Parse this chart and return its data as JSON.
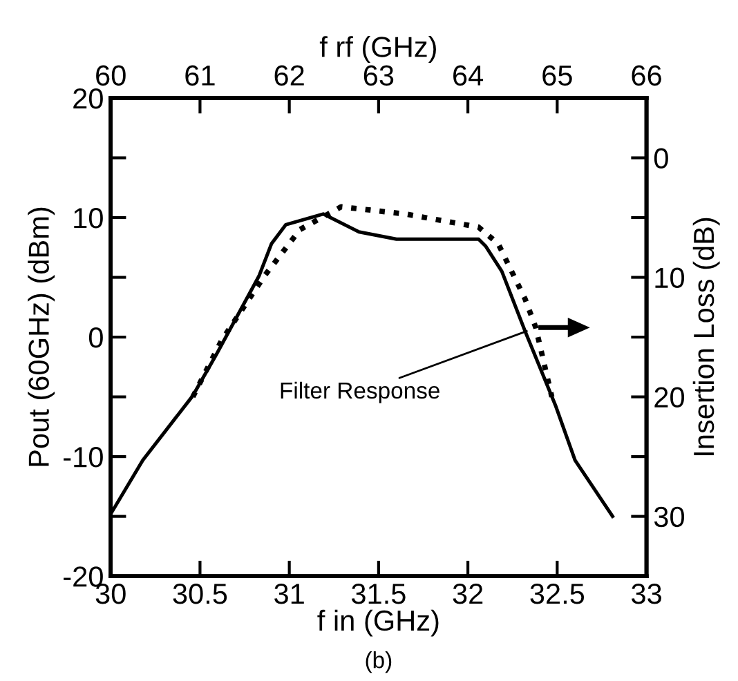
{
  "chart_data": {
    "type": "line",
    "xlabel": "f in (GHz)",
    "ylabel": "Pout (60GHz) (dBm)",
    "y2label": "Insertion Loss (dB)",
    "x2label": "f rf (GHz)",
    "xlim": [
      30,
      33
    ],
    "xticks": [
      30,
      30.5,
      31,
      31.5,
      32,
      32.5,
      33
    ],
    "x2lim": [
      60,
      66
    ],
    "x2ticks": [
      60,
      61,
      62,
      63,
      64,
      65,
      66
    ],
    "ylim": [
      -20,
      20
    ],
    "yticks": [
      -20,
      {
        "value": -15,
        "label": null
      },
      -10,
      {
        "value": -5,
        "label": null
      },
      0,
      {
        "value": 5,
        "label": null
      },
      10,
      {
        "value": 15,
        "label": null
      },
      20
    ],
    "y2lim": [
      35,
      -5
    ],
    "y2ticks": [
      0,
      {
        "value": 5,
        "label": null
      },
      10,
      {
        "value": 15,
        "label": null
      },
      20,
      {
        "value": 25,
        "label": null
      },
      30
    ],
    "series": [
      {
        "color": "#000000",
        "line_style": "solid",
        "x": [
          30,
          30.18,
          30.46,
          30.59,
          30.83,
          30.9,
          30.98,
          31.19,
          31.39,
          31.6,
          32.06,
          32.1,
          32.19,
          32.32,
          32.49,
          32.6,
          32.81
        ],
        "values": [
          -14.8,
          -10.3,
          -4.9,
          -1.5,
          5.1,
          7.8,
          9.4,
          10.3,
          8.8,
          8.2,
          8.2,
          7.6,
          5.5,
          0.5,
          -5.7,
          -10.3,
          -15.0
        ]
      },
      {
        "color": "#000000",
        "line_style": "dotted",
        "axis": "y2",
        "x": [
          30.46,
          30.62,
          30.86,
          31.06,
          31.29,
          31.65,
          32.06,
          32.17,
          32.32,
          32.38,
          32.47
        ],
        "values": [
          20.0,
          15.3,
          9.9,
          6.0,
          4.1,
          4.7,
          5.8,
          7.2,
          11.8,
          14.2,
          20.0
        ]
      }
    ],
    "annotations": [
      {
        "text": "Filter Response",
        "x": 32.33,
        "y": 0.5
      },
      "(b)"
    ],
    "grid": false,
    "legend": false,
    "marker": "none"
  }
}
